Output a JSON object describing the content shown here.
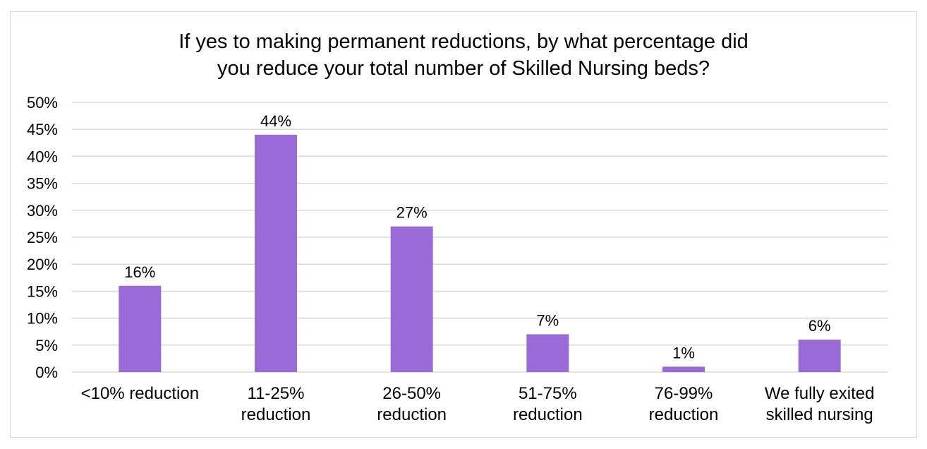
{
  "chart_data": {
    "type": "bar",
    "title_lines": [
      "If yes to making permanent reductions, by what percentage did",
      "you reduce your total number of Skilled Nursing beds?"
    ],
    "categories": [
      [
        "<10% reduction"
      ],
      [
        "11-25%",
        "reduction"
      ],
      [
        "26-50%",
        "reduction"
      ],
      [
        "51-75%",
        "reduction"
      ],
      [
        "76-99%",
        "reduction"
      ],
      [
        "We fully exited",
        "skilled nursing"
      ]
    ],
    "values": [
      16,
      44,
      27,
      7,
      1,
      6
    ],
    "data_labels": [
      "16%",
      "44%",
      "27%",
      "7%",
      "1%",
      "6%"
    ],
    "y_ticks": [
      "0%",
      "5%",
      "10%",
      "15%",
      "20%",
      "25%",
      "30%",
      "35%",
      "40%",
      "45%",
      "50%"
    ],
    "ylim": [
      0,
      50
    ],
    "xlabel": "",
    "ylabel": "",
    "grid": true,
    "legend": "none",
    "colors": {
      "bar": "#9a6bd6",
      "grid": "#d9d9d9",
      "axis": "#d9d9d9"
    }
  }
}
